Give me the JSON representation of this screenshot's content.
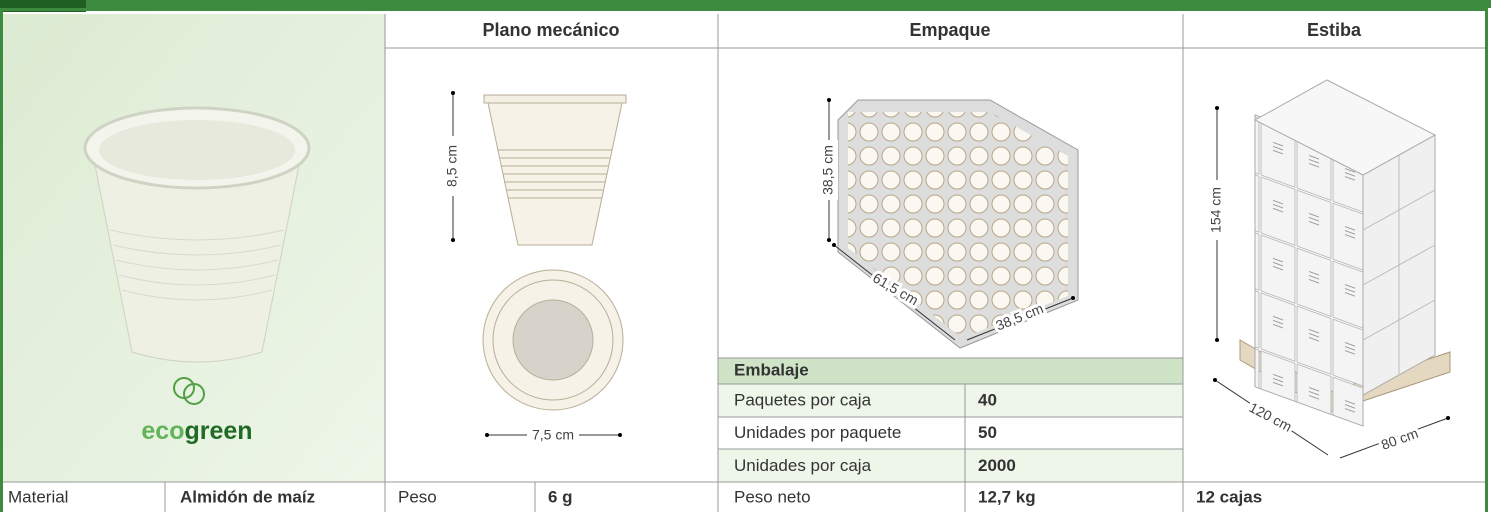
{
  "headers": {
    "plano": "Plano mecánico",
    "empaque": "Empaque",
    "estiba": "Estiba"
  },
  "brand": {
    "prefix": "eco",
    "suffix": "green"
  },
  "plano": {
    "height": "8,5 cm",
    "diameter": "7,5 cm"
  },
  "empaque": {
    "height": "38,5 cm",
    "length": "61,5 cm",
    "width": "38,5 cm"
  },
  "embalaje": {
    "title": "Embalaje",
    "rows": [
      [
        "Paquetes por caja",
        "40"
      ],
      [
        "Unidades por paquete",
        "50"
      ],
      [
        "Unidades por caja",
        "2000"
      ]
    ]
  },
  "estiba": {
    "height": "154 cm",
    "length": "120 cm",
    "width": "80 cm"
  },
  "specs": {
    "material": {
      "label": "Material",
      "value": "Almidón de maíz"
    },
    "peso": {
      "label": "Peso",
      "value": "6 g"
    },
    "peso_neto": {
      "label": "Peso neto",
      "value": "12,7 kg"
    },
    "estiba": "12 cajas"
  }
}
